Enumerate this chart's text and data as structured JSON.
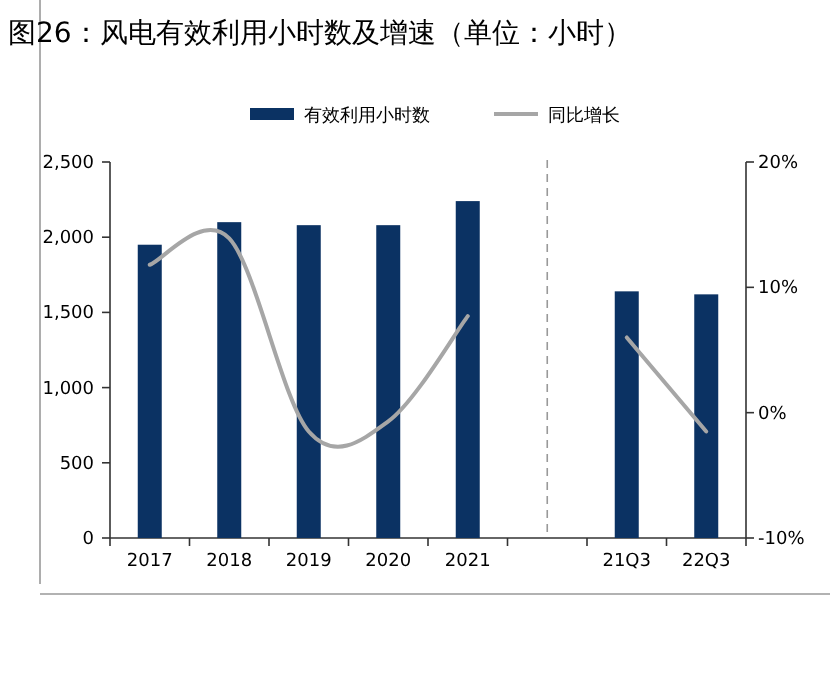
{
  "chart_data": {
    "type": "bar",
    "title": "图26：风电有效利用小时数及增速（单位：小时）",
    "categories": [
      "2017",
      "2018",
      "2019",
      "2020",
      "2021",
      null,
      "21Q3",
      "22Q3"
    ],
    "series": [
      {
        "name": "有效利用小时数",
        "color": "#0b3263",
        "values": [
          1950,
          2100,
          2080,
          2080,
          2240,
          null,
          1640,
          1620
        ]
      },
      {
        "name": "同比增长",
        "type": "line",
        "axis": "y2",
        "color": "#a6a6a6",
        "values": [
          11.8,
          13.9,
          -1.5,
          -0.7,
          7.7,
          null,
          6.0,
          -1.5
        ]
      }
    ],
    "ylim": [
      0,
      2500
    ],
    "yticks": [
      0,
      500,
      {
        "value": 1000,
        "label": "1,000"
      },
      {
        "value": 1500,
        "label": "1,500"
      },
      {
        "value": 2000,
        "label": "2,000"
      },
      {
        "value": 2500,
        "label": "2,500"
      }
    ],
    "y2lim": [
      -10,
      20
    ],
    "y2ticks": [
      {
        "value": -10,
        "label": "-10%"
      },
      {
        "value": 0,
        "label": "0%"
      },
      {
        "value": 10,
        "label": "10%"
      },
      {
        "value": 20,
        "label": "20%"
      }
    ],
    "legend": "top",
    "marker": "none"
  }
}
